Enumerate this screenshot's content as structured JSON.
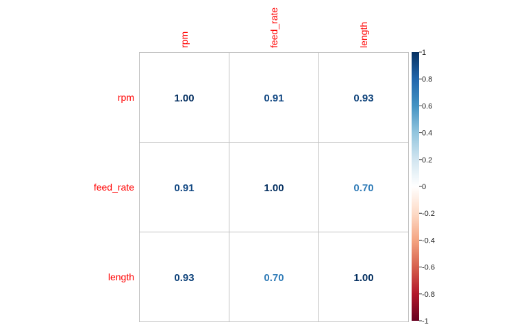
{
  "chart_data": {
    "type": "heatmap",
    "title": "",
    "variables": [
      "rpm",
      "feed_rate",
      "length"
    ],
    "matrix": [
      [
        1.0,
        0.91,
        0.93
      ],
      [
        0.91,
        1.0,
        0.7
      ],
      [
        0.93,
        0.7,
        1.0
      ]
    ],
    "cell_labels": [
      [
        "1.00",
        "0.91",
        "0.93"
      ],
      [
        "0.91",
        "1.00",
        "0.70"
      ],
      [
        "0.93",
        "0.70",
        "1.00"
      ]
    ],
    "color_range": [
      -1,
      1
    ],
    "colorbar": {
      "ticks": [
        1,
        0.8,
        0.6,
        0.4,
        0.2,
        0,
        -0.2,
        -0.4,
        -0.6,
        -0.8,
        -1
      ],
      "tick_labels": [
        "1",
        "0.8",
        "0.6",
        "0.4",
        "0.2",
        "0",
        "-0.2",
        "-0.4",
        "-0.6",
        "-0.8",
        "-1"
      ],
      "placement": "right"
    },
    "colormap": [
      "#67001F",
      "#B2182B",
      "#D6604D",
      "#F4A582",
      "#FDDBC7",
      "#FFFFFF",
      "#D1E5F0",
      "#92C5DE",
      "#4393C3",
      "#2166AC",
      "#053061"
    ],
    "label_color": "#FF0000",
    "grid": true
  }
}
